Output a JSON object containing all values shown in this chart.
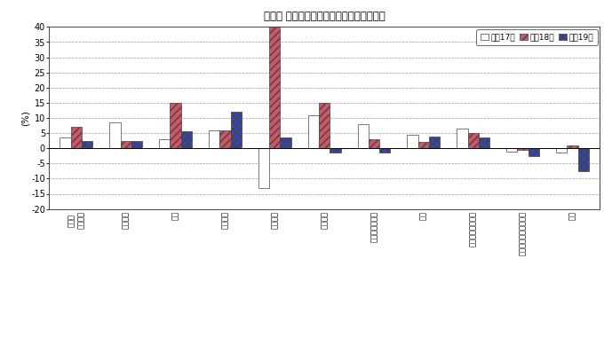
{
  "title": "図－２ 主要業種別生産指数の前年比の推移",
  "ylabel": "(%)",
  "ylim": [
    -20,
    40
  ],
  "yticks": [
    -20,
    -15,
    -10,
    -5,
    0,
    5,
    10,
    15,
    20,
    25,
    30,
    35,
    40
  ],
  "categories": [
    "鉱工業\n（総合）",
    "金属製品",
    "機械",
    "一般機械",
    "情報通信",
    "輸送機械",
    "窯業・土石製品",
    "化学",
    "プラスチック製品",
    "パルプ・紙・紙加工品",
    "繊維"
  ],
  "series": [
    {
      "name": "平成17年",
      "values": [
        3.5,
        8.5,
        3.0,
        6.0,
        -13.0,
        11.0,
        8.0,
        4.5,
        6.5,
        -1.0,
        -1.5
      ],
      "color": "white",
      "edgecolor": "#444444",
      "hatch": ""
    },
    {
      "name": "平成18年",
      "values": [
        7.0,
        2.5,
        15.0,
        6.0,
        40.0,
        15.0,
        3.0,
        2.0,
        5.0,
        -0.5,
        1.0
      ],
      "color": "#cc5566",
      "edgecolor": "#444444",
      "hatch": "////"
    },
    {
      "name": "平成19年",
      "values": [
        2.5,
        2.5,
        5.5,
        12.0,
        3.5,
        -1.5,
        -1.5,
        4.0,
        3.5,
        -2.5,
        -7.5
      ],
      "color": "#3344bb",
      "edgecolor": "#444444",
      "hatch": "xxxx"
    }
  ],
  "bar_width": 0.22,
  "background_color": "#ffffff",
  "grid_color": "#999999"
}
